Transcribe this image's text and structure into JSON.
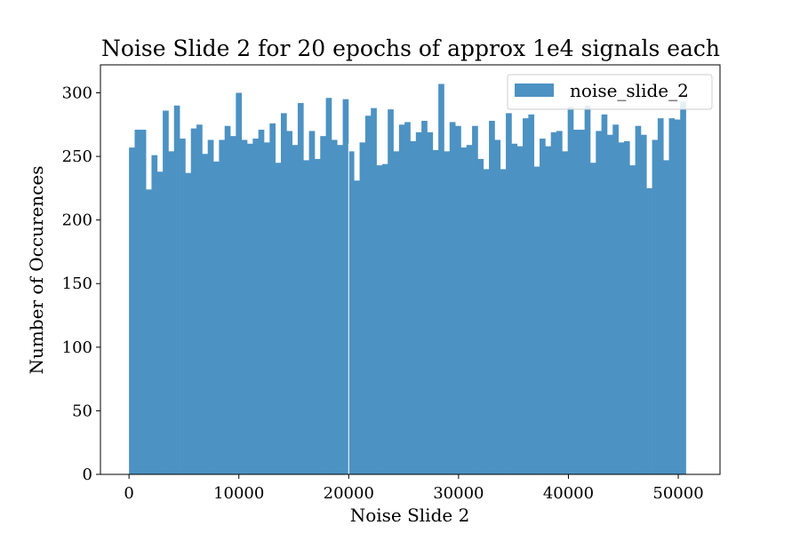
{
  "chart_data": {
    "type": "bar",
    "title": "Noise Slide 2 for 20 epochs of approx 1e4 signals each",
    "xlabel": "Noise Slide 2",
    "ylabel": "Number of Occurences",
    "xlim": [
      -2600,
      53800
    ],
    "ylim": [
      0,
      322
    ],
    "xticks": [
      0,
      10000,
      20000,
      30000,
      40000,
      50000
    ],
    "xtick_labels": [
      "0",
      "10000",
      "20000",
      "30000",
      "40000",
      "50000"
    ],
    "yticks": [
      0,
      50,
      100,
      150,
      200,
      250,
      300
    ],
    "ytick_labels": [
      "0",
      "50",
      "100",
      "150",
      "200",
      "250",
      "300"
    ],
    "bin_start": 0,
    "bin_width": 512,
    "legend_position": "top-right",
    "bar_color": "#4c92c3",
    "gap_at": 20000,
    "series": [
      {
        "name": "noise_slide_2",
        "values": [
          257,
          271,
          271,
          224,
          251,
          238,
          286,
          254,
          290,
          264,
          237,
          272,
          275,
          252,
          263,
          246,
          263,
          274,
          266,
          300,
          263,
          260,
          264,
          271,
          261,
          276,
          245,
          284,
          270,
          259,
          292,
          247,
          270,
          248,
          266,
          296,
          263,
          259,
          295,
          254,
          231,
          261,
          282,
          288,
          243,
          244,
          287,
          254,
          275,
          277,
          262,
          269,
          278,
          269,
          255,
          307,
          254,
          277,
          274,
          257,
          259,
          274,
          248,
          240,
          278,
          263,
          240,
          284,
          260,
          258,
          280,
          283,
          242,
          264,
          258,
          269,
          270,
          254,
          289,
          271,
          271,
          290,
          245,
          270,
          283,
          267,
          275,
          261,
          262,
          243,
          274,
          267,
          225,
          263,
          280,
          247,
          280,
          279,
          293
        ]
      }
    ]
  }
}
